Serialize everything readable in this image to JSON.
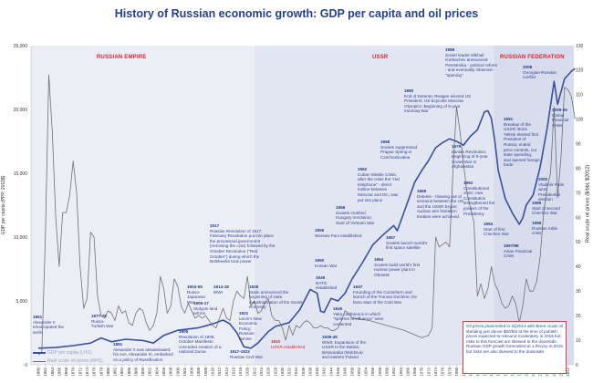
{
  "title": "History of Russian economic growth: GDP per capita and oil prices",
  "regions": [
    "RUSSIAN EMPIRE",
    "USSR",
    "RUSSIAN FEDERATION"
  ],
  "legend": {
    "gdp": "GDP per capita (LHS)",
    "oil": "Real crude oil prices (RHS)"
  },
  "colors": {
    "gdp": "#3c4f9c",
    "oil": "#707070",
    "empire_bg": "#eceef6",
    "ussr_bg": "#e2e6f2",
    "rf_bg": "#d7dded",
    "accent_red": "#e0202f"
  },
  "annotations": [
    {
      "year": "1861",
      "text": "Alexander II emancipated the serfs"
    },
    {
      "year": "1877-78",
      "text": "Russo-Turkish War"
    },
    {
      "year": "1881",
      "text": "Alexander II was assassinated; his son, Alexander III, embarked on a policy of Russification"
    },
    {
      "year": "1904-05",
      "text": "Russo-Japanese War"
    },
    {
      "year": "1906-17",
      "text": "Stolypin land reform"
    },
    {
      "year": "1905",
      "text": "Revolution of 1905; October Manifesto conceded creation of a national Duma"
    },
    {
      "year": "1914-18",
      "text": "WWI"
    },
    {
      "year": "1917",
      "text": "Russian Revolution of 1917; February Revolution put into place the provisional government (removing the czar) followed by the October Revolution (\"Red October\") during which the Bolsheviks took power"
    },
    {
      "year": "1921",
      "text": "Lenin's New Economic Policy; Russian famine"
    },
    {
      "year": "1928",
      "text": "Stalin announced the beginning of state industrialization of the Soviet economy"
    },
    {
      "year": "1917-1922",
      "text": "Russian Civil War"
    },
    {
      "year": "1922",
      "text": "USSR established"
    },
    {
      "year": "1939-45",
      "text": "WWII; Expansion of the USSR to the Baltics, Bessarabia (Moldova) and eastern Poland"
    },
    {
      "year": "1945",
      "text": "Yalta conference in which \"spheres of influence\" were cemented"
    },
    {
      "year": "1947",
      "text": "Founding of the Cominform and launch of the Truman Doctrine; De facto start of the Cold War"
    },
    {
      "year": "1949",
      "text": "NATO established"
    },
    {
      "year": "1950",
      "text": "Korean War"
    },
    {
      "year": "1954",
      "text": "Soviets build world's first nuclear power plant in Obninsk"
    },
    {
      "year": "1955",
      "text": "Warsaw Pact established"
    },
    {
      "year": "1956",
      "text": "Soviets crushed Hungary revolution; Start of Vietnam War"
    },
    {
      "year": "1957",
      "text": "Soviets launch world's first space satellite"
    },
    {
      "year": "1962",
      "text": "Cuban Missile Crisis; after the crisis the \"red telephone\" - direct hotline between Moscow and DC, was put into place"
    },
    {
      "year": "1968",
      "text": "Soviets suppressed Prague Spring in Czechoslovakia"
    },
    {
      "year": "1969",
      "text": "Detente - thawing out of tensions between the US and the USSR began; nuclear arm limitation treaties were achieved"
    },
    {
      "year": "1979",
      "text": "Iranian Revolution; Beginning of 9-year Soviet War in Afghanistan"
    },
    {
      "year": "1980",
      "text": "End of Detente; Reagan elected US President; US boycotts Moscow Olympics; Beginning of 8-year Iran/Iraq War"
    },
    {
      "year": "1986",
      "text": "Soviet leader Mikhail Gorbachev announced Perestroika - political reform - and eventually Glasnost - \"opening\""
    },
    {
      "year": "1991",
      "text": "Breakup of the USSR; Boris Yeltsin elected first President of Russia; ended price controls, cut state spending, and opened foreign trade"
    },
    {
      "year": "1993",
      "text": "Constitutional crisis; new Constitution strengthened the powers of the Presidency"
    },
    {
      "year": "1994",
      "text": "Start of first Chechen War"
    },
    {
      "year": "1997/98",
      "text": "Asian Financial Crisis"
    },
    {
      "year": "1998",
      "text": "Russian ruble crisis"
    },
    {
      "year": "1999",
      "text": "Start of second Chechen War"
    },
    {
      "year": "2000",
      "text": "Vladimir Putin wins Presidential election"
    },
    {
      "year": "2008",
      "text": "Georgian-Russian conflict"
    },
    {
      "year": "2008-09",
      "text": "Global Financial Crisis"
    }
  ],
  "oil_note": "Oil prices plummeted in 4Q2014 with Brent crude oil standing just above $60/bbl at the time of publish; prices expected to rebound moderately in 2015 but risks to this forecast are skewed to the downside. Russian GDP growth forecasted at 1.0%yoy in 2015 but risks are also skewed to the downside.",
  "chart_data": {
    "type": "line",
    "title": "History of Russian economic growth: GDP per capita and oil prices",
    "xlabel": "",
    "ylabel": "GDP per capita (PPP, 2010$)",
    "ylabel_right": "Real crude oil prices ($/bbl, $2012)",
    "xlim": [
      1860,
      2014
    ],
    "ylim": [
      0,
      25000
    ],
    "ylim_right": [
      0,
      130
    ],
    "yticks": [
      "0",
      "5,000",
      "10,000",
      "15,000",
      "20,000",
      "25,000"
    ],
    "yticks_right": [
      "0",
      "10",
      "20",
      "30",
      "40",
      "50",
      "60",
      "70",
      "80",
      "90",
      "100",
      "110",
      "120",
      "130"
    ],
    "grid": false,
    "legend_position": "bottom-left",
    "series": [
      {
        "name": "GDP per capita (LHS)",
        "axis": "left",
        "points": [
          [
            1860,
            1300
          ],
          [
            1865,
            1350
          ],
          [
            1870,
            1500
          ],
          [
            1875,
            1700
          ],
          [
            1878,
            2100
          ],
          [
            1881,
            1800
          ],
          [
            1885,
            2000
          ],
          [
            1890,
            1900
          ],
          [
            1893,
            1700
          ],
          [
            1896,
            2300
          ],
          [
            1900,
            2700
          ],
          [
            1903,
            2800
          ],
          [
            1906,
            2900
          ],
          [
            1910,
            3200
          ],
          [
            1913,
            3500
          ],
          [
            1915,
            3200
          ],
          [
            1917,
            2500
          ],
          [
            1919,
            1400
          ],
          [
            1921,
            1300
          ],
          [
            1923,
            1700
          ],
          [
            1926,
            2600
          ],
          [
            1928,
            3000
          ],
          [
            1932,
            3300
          ],
          [
            1935,
            4300
          ],
          [
            1938,
            5900
          ],
          [
            1940,
            5600
          ],
          [
            1941,
            4200
          ],
          [
            1942,
            4100
          ],
          [
            1944,
            5200
          ],
          [
            1946,
            5000
          ],
          [
            1948,
            5600
          ],
          [
            1950,
            6700
          ],
          [
            1953,
            8000
          ],
          [
            1956,
            9400
          ],
          [
            1959,
            10200
          ],
          [
            1962,
            10900
          ],
          [
            1963,
            10500
          ],
          [
            1965,
            12000
          ],
          [
            1968,
            14300
          ],
          [
            1970,
            15200
          ],
          [
            1972,
            16000
          ],
          [
            1974,
            17000
          ],
          [
            1976,
            17400
          ],
          [
            1978,
            17700
          ],
          [
            1980,
            17500
          ],
          [
            1982,
            17200
          ],
          [
            1984,
            17900
          ],
          [
            1986,
            18400
          ],
          [
            1988,
            19800
          ],
          [
            1989,
            19900
          ],
          [
            1990,
            19300
          ],
          [
            1991,
            17500
          ],
          [
            1992,
            15200
          ],
          [
            1994,
            13000
          ],
          [
            1996,
            11900
          ],
          [
            1998,
            11000
          ],
          [
            1999,
            11500
          ],
          [
            2000,
            12500
          ],
          [
            2002,
            13300
          ],
          [
            2004,
            15500
          ],
          [
            2006,
            18500
          ],
          [
            2008,
            22200
          ],
          [
            2009,
            20400
          ],
          [
            2011,
            22400
          ],
          [
            2013,
            23000
          ],
          [
            2014,
            23200
          ]
        ]
      },
      {
        "name": "Real crude oil prices (RHS)",
        "axis": "right",
        "points": [
          [
            1860,
            4
          ],
          [
            1861,
            5
          ],
          [
            1862,
            50
          ],
          [
            1863,
            118
          ],
          [
            1864,
            95
          ],
          [
            1865,
            60
          ],
          [
            1866,
            40
          ],
          [
            1867,
            62
          ],
          [
            1868,
            62
          ],
          [
            1869,
            69
          ],
          [
            1870,
            83
          ],
          [
            1871,
            70
          ],
          [
            1872,
            40
          ],
          [
            1873,
            23
          ],
          [
            1874,
            27
          ],
          [
            1875,
            54
          ],
          [
            1876,
            52
          ],
          [
            1877,
            28
          ],
          [
            1878,
            20
          ],
          [
            1879,
            19
          ],
          [
            1880,
            22
          ],
          [
            1881,
            21
          ],
          [
            1882,
            18
          ],
          [
            1883,
            24
          ],
          [
            1884,
            21
          ],
          [
            1885,
            22
          ],
          [
            1886,
            17
          ],
          [
            1887,
            16
          ],
          [
            1888,
            21
          ],
          [
            1889,
            23
          ],
          [
            1890,
            22
          ],
          [
            1891,
            17
          ],
          [
            1892,
            14
          ],
          [
            1893,
            16
          ],
          [
            1894,
            21
          ],
          [
            1895,
            36
          ],
          [
            1896,
            31
          ],
          [
            1897,
            21
          ],
          [
            1898,
            24
          ],
          [
            1899,
            35
          ],
          [
            1900,
            32
          ],
          [
            1901,
            24
          ],
          [
            1902,
            21
          ],
          [
            1903,
            25
          ],
          [
            1904,
            22
          ],
          [
            1905,
            19
          ],
          [
            1906,
            20
          ],
          [
            1907,
            19
          ],
          [
            1908,
            20
          ],
          [
            1909,
            18
          ],
          [
            1910,
            16
          ],
          [
            1911,
            15
          ],
          [
            1912,
            19
          ],
          [
            1913,
            23
          ],
          [
            1914,
            19
          ],
          [
            1915,
            18
          ],
          [
            1916,
            26
          ],
          [
            1917,
            30
          ],
          [
            1918,
            28
          ],
          [
            1919,
            27
          ],
          [
            1920,
            36
          ],
          [
            1921,
            24
          ],
          [
            1922,
            26
          ],
          [
            1923,
            21
          ],
          [
            1924,
            22
          ],
          [
            1925,
            25
          ],
          [
            1926,
            27
          ],
          [
            1927,
            20
          ],
          [
            1928,
            18
          ],
          [
            1929,
            18
          ],
          [
            1930,
            15
          ],
          [
            1931,
            10
          ],
          [
            1932,
            16
          ],
          [
            1933,
            12
          ],
          [
            1934,
            16
          ],
          [
            1935,
            15
          ],
          [
            1936,
            17
          ],
          [
            1937,
            18
          ],
          [
            1938,
            17
          ],
          [
            1939,
            15
          ],
          [
            1940,
            15
          ],
          [
            1941,
            16
          ],
          [
            1942,
            15
          ],
          [
            1943,
            15
          ],
          [
            1944,
            14
          ],
          [
            1945,
            14
          ],
          [
            1946,
            15
          ],
          [
            1947,
            18
          ],
          [
            1948,
            22
          ],
          [
            1949,
            21
          ],
          [
            1950,
            19
          ],
          [
            1955,
            18
          ],
          [
            1960,
            16
          ],
          [
            1965,
            14
          ],
          [
            1970,
            11
          ],
          [
            1972,
            12
          ],
          [
            1973,
            15
          ],
          [
            1974,
            52
          ],
          [
            1975,
            48
          ],
          [
            1977,
            50
          ],
          [
            1978,
            48
          ],
          [
            1979,
            80
          ],
          [
            1980,
            105
          ],
          [
            1981,
            95
          ],
          [
            1982,
            82
          ],
          [
            1983,
            70
          ],
          [
            1984,
            64
          ],
          [
            1985,
            58
          ],
          [
            1986,
            28
          ],
          [
            1987,
            33
          ],
          [
            1988,
            27
          ],
          [
            1989,
            31
          ],
          [
            1990,
            40
          ],
          [
            1991,
            33
          ],
          [
            1992,
            30
          ],
          [
            1993,
            25
          ],
          [
            1994,
            23
          ],
          [
            1995,
            24
          ],
          [
            1996,
            28
          ],
          [
            1997,
            25
          ],
          [
            1998,
            17
          ],
          [
            1999,
            24
          ],
          [
            2000,
            35
          ],
          [
            2001,
            30
          ],
          [
            2002,
            30
          ],
          [
            2003,
            34
          ],
          [
            2004,
            44
          ],
          [
            2005,
            62
          ],
          [
            2006,
            72
          ],
          [
            2007,
            78
          ],
          [
            2008,
            105
          ],
          [
            2009,
            68
          ],
          [
            2010,
            85
          ],
          [
            2011,
            113
          ],
          [
            2012,
            112
          ],
          [
            2013,
            109
          ],
          [
            2014,
            100
          ]
        ]
      }
    ]
  }
}
